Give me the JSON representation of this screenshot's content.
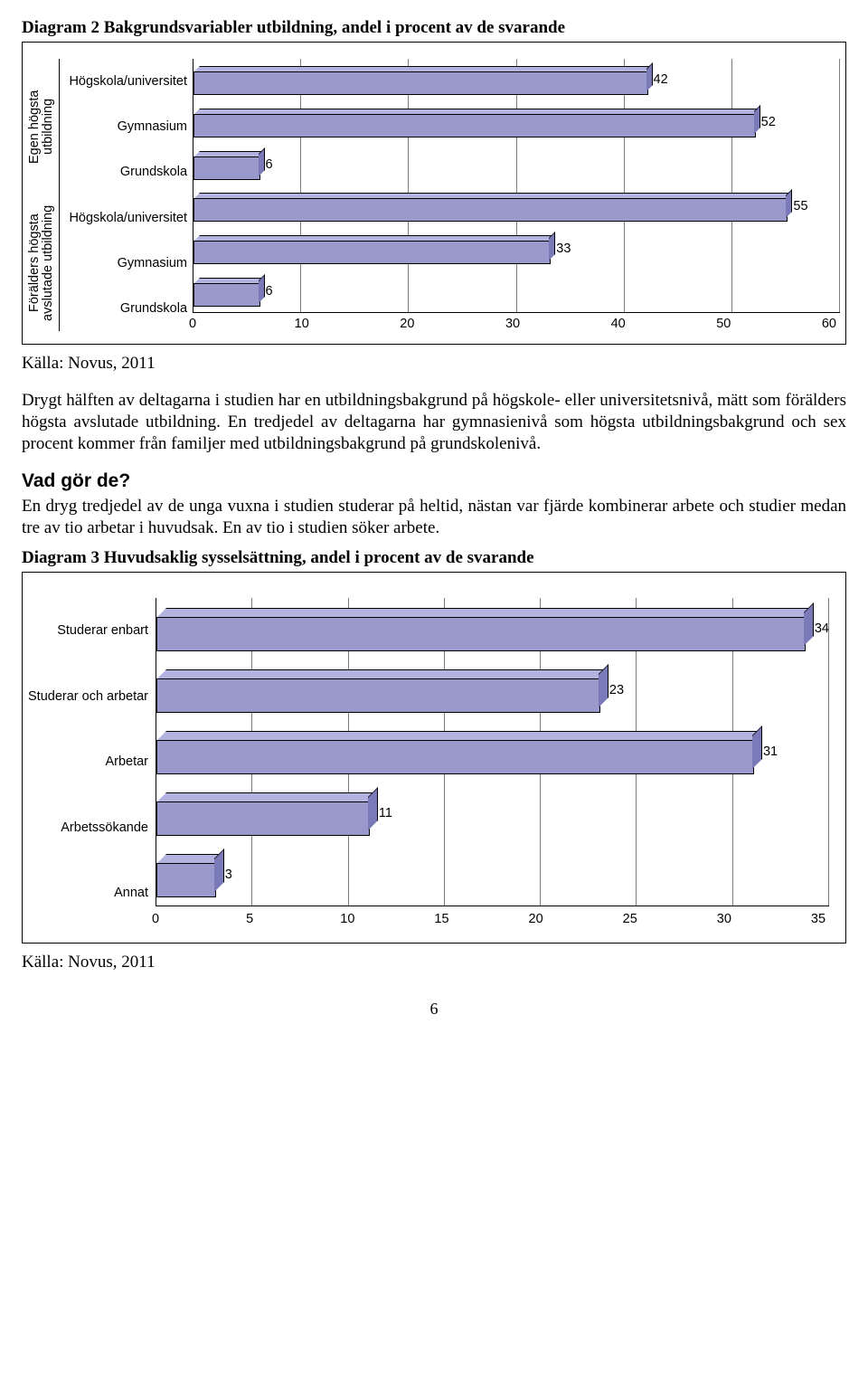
{
  "diagram2": {
    "title": "Diagram 2 Bakgrundsvariabler utbildning, andel i procent av de svarande",
    "groups": [
      "Egen högsta\nutbildning",
      "Förälders högsta\navslutade\nutbildning"
    ],
    "categories": [
      "Högskola/universitet",
      "Gymnasium",
      "Grundskola",
      "Högskola/universitet",
      "Gymnasium",
      "Grundskola"
    ],
    "values": [
      42,
      52,
      6,
      55,
      33,
      6
    ],
    "xmax": 60,
    "xtick_step": 10,
    "xticks": [
      "0",
      "10",
      "20",
      "30",
      "40",
      "50",
      "60"
    ],
    "bar_color": "#9999cc",
    "bar_top_color": "#b3b3e0",
    "bar_side_color": "#7a7ab8",
    "grid_color": "#7f7f7f",
    "background": "#ffffff",
    "font_family": "Arial",
    "label_fontsize": 14.5
  },
  "source1": "Källa: Novus, 2011",
  "para1": "Drygt hälften av deltagarna i studien har en utbildningsbakgrund på högskole- eller universitetsnivå, mätt som förälders högsta avslutade utbildning. En tredjedel av deltagarna har gymnasienivå som högsta utbildningsbakgrund och sex procent kommer från familjer med utbildningsbakgrund på grundskolenivå.",
  "heading": "Vad gör de?",
  "para2": "En dryg tredjedel av de unga vuxna i studien studerar på heltid, nästan var fjärde kombinerar arbete och studier medan tre av tio arbetar i huvudsak. En av tio i studien söker arbete.",
  "diagram3": {
    "title": "Diagram 3 Huvudsaklig sysselsättning, andel i procent av de svarande",
    "categories": [
      "Studerar enbart",
      "Studerar och arbetar",
      "Arbetar",
      "Arbetssökande",
      "Annat"
    ],
    "values": [
      34,
      23,
      31,
      11,
      3
    ],
    "xmax": 35,
    "xtick_step": 5,
    "xticks": [
      "0",
      "5",
      "10",
      "15",
      "20",
      "25",
      "30",
      "35"
    ],
    "bar_color": "#9999cc",
    "bar_top_color": "#b3b3e0",
    "bar_side_color": "#7a7ab8",
    "grid_color": "#7f7f7f",
    "background": "#ffffff",
    "font_family": "Arial",
    "label_fontsize": 14.5
  },
  "source2": "Källa: Novus, 2011",
  "page_number": "6"
}
